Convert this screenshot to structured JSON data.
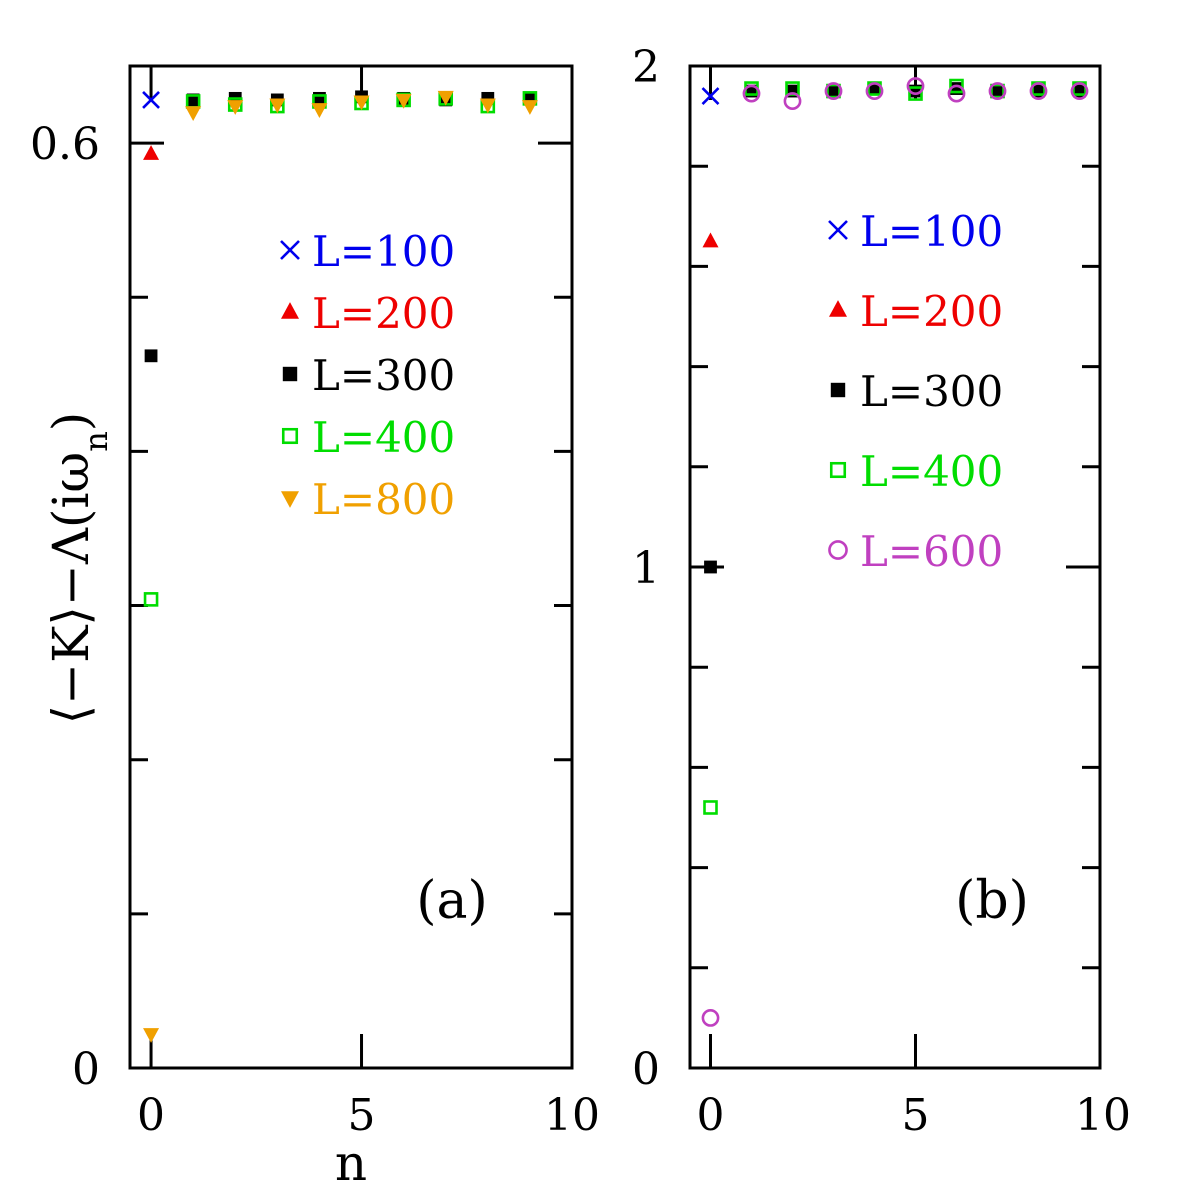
{
  "chart_data": [
    {
      "type": "scatter",
      "panel_label": "(a)",
      "xlabel": "n",
      "ylabel": "⟨−K⟩−Λ(iω",
      "ylabel_sub": "n",
      "ylabel_close": ")",
      "xlim": [
        -0.5,
        10
      ],
      "ylim": [
        0,
        0.65
      ],
      "xticks": [
        0,
        5,
        10
      ],
      "xtick_labels": [
        "0",
        "5",
        "10"
      ],
      "yticks": [
        0,
        0.6
      ],
      "ytick_labels": [
        "0",
        "0.6"
      ],
      "legend": {
        "placement": "upper-center"
      },
      "series": [
        {
          "name": "L=100",
          "marker": "x",
          "color": "#0000ee",
          "x": [
            0
          ],
          "y": [
            0.628
          ]
        },
        {
          "name": "L=200",
          "marker": "triangle-up",
          "color": "#ee0000",
          "x": [
            0
          ],
          "y": [
            0.593
          ]
        },
        {
          "name": "L=300",
          "marker": "square-filled",
          "color": "#000000",
          "x": [
            0,
            1,
            2,
            3,
            4,
            5,
            6,
            7,
            8,
            9
          ],
          "y": [
            0.462,
            0.628,
            0.629,
            0.628,
            0.629,
            0.63,
            0.629,
            0.628,
            0.629,
            0.629
          ]
        },
        {
          "name": "L=400",
          "marker": "square-open",
          "color": "#00dd00",
          "x": [
            0,
            1,
            2,
            3,
            4,
            5,
            6,
            7,
            8,
            9
          ],
          "y": [
            0.304,
            0.627,
            0.625,
            0.624,
            0.627,
            0.626,
            0.628,
            0.629,
            0.624,
            0.629
          ]
        },
        {
          "name": "L=800",
          "marker": "triangle-down",
          "color": "#f0a000",
          "x": [
            0,
            1,
            2,
            3,
            4,
            5,
            6,
            7,
            8,
            9
          ],
          "y": [
            0.022,
            0.62,
            0.624,
            0.625,
            0.622,
            0.627,
            0.628,
            0.63,
            0.625,
            0.624
          ]
        }
      ]
    },
    {
      "type": "scatter",
      "panel_label": "(b)",
      "xlim": [
        -0.5,
        9.5
      ],
      "ylim": [
        0,
        2
      ],
      "xticks": [
        0,
        5
      ],
      "xtick_labels": [
        "0",
        "5"
      ],
      "xtick_extra_label": "10",
      "yticks": [
        0,
        1,
        2
      ],
      "ytick_labels": [
        "0",
        "1",
        "2"
      ],
      "legend": {
        "placement": "upper-center"
      },
      "series": [
        {
          "name": "L=100",
          "marker": "x",
          "color": "#0000ee",
          "x": [
            0
          ],
          "y": [
            1.94
          ]
        },
        {
          "name": "L=200",
          "marker": "triangle-up",
          "color": "#ee0000",
          "x": [
            0
          ],
          "y": [
            1.65
          ]
        },
        {
          "name": "L=300",
          "marker": "square-filled",
          "color": "#000000",
          "x": [
            0,
            1,
            2,
            3,
            4,
            5,
            6,
            7,
            8,
            9
          ],
          "y": [
            1.0,
            1.95,
            1.95,
            1.95,
            1.955,
            1.95,
            1.955,
            1.95,
            1.95,
            1.95
          ]
        },
        {
          "name": "L=400",
          "marker": "square-open",
          "color": "#00dd00",
          "x": [
            0,
            1,
            2,
            3,
            4,
            5,
            6,
            7,
            8,
            9
          ],
          "y": [
            0.52,
            1.955,
            1.955,
            1.95,
            1.955,
            1.945,
            1.96,
            1.95,
            1.955,
            1.955
          ]
        },
        {
          "name": "L=600",
          "marker": "circle-open",
          "color": "#c040c0",
          "x": [
            0,
            1,
            2,
            3,
            4,
            5,
            6,
            7,
            8,
            9
          ],
          "y": [
            0.1,
            1.945,
            1.93,
            1.95,
            1.95,
            1.96,
            1.945,
            1.95,
            1.95,
            1.95
          ]
        }
      ]
    }
  ]
}
